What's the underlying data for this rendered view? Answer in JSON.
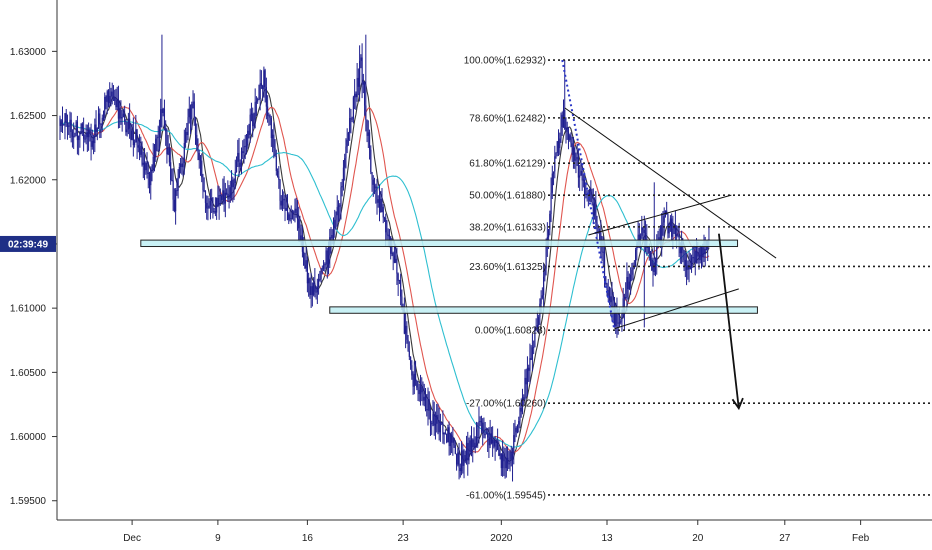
{
  "chart_data": {
    "type": "candlestick",
    "title": "",
    "ylim": [
      1.5935,
      1.634
    ],
    "y_ticks": [
      "1.63000",
      "1.62500",
      "1.62000",
      "1.61500",
      "1.61000",
      "1.60500",
      "1.60000",
      "1.59500"
    ],
    "y_tick_values": [
      1.63,
      1.625,
      1.62,
      1.615,
      1.61,
      1.605,
      1.6,
      1.595
    ],
    "x_ticks": [
      "Dec",
      "9",
      "16",
      "23",
      "2020",
      "13",
      "20",
      "27",
      "Feb"
    ],
    "x_tick_bars": [
      58,
      127,
      199,
      276,
      355,
      440,
      513,
      583,
      644
    ],
    "bar_count": 700,
    "current_time_label": "02:39:49",
    "current_price": 1.615,
    "colors": {
      "candle": "#1f1f8f",
      "ma_fast": "#3a3a3a",
      "ma_mid": "#e0564f",
      "ma_slow": "#2fbfd0",
      "zone": "#bfeff3",
      "zone_border": "#222222",
      "fib_line": "#1e1e1e",
      "fib_swing": "#2a36c8",
      "axis_label_bg": "#1f2f86"
    },
    "price_path": [
      [
        0,
        1.6248
      ],
      [
        25,
        1.623
      ],
      [
        40,
        1.6268
      ],
      [
        52,
        1.6245
      ],
      [
        62,
        1.623
      ],
      [
        72,
        1.6195
      ],
      [
        82,
        1.6255
      ],
      [
        92,
        1.618
      ],
      [
        106,
        1.626
      ],
      [
        118,
        1.6175
      ],
      [
        135,
        1.619
      ],
      [
        152,
        1.624
      ],
      [
        164,
        1.6278
      ],
      [
        178,
        1.618
      ],
      [
        190,
        1.617
      ],
      [
        202,
        1.611
      ],
      [
        212,
        1.613
      ],
      [
        222,
        1.6165
      ],
      [
        232,
        1.624
      ],
      [
        242,
        1.629
      ],
      [
        250,
        1.621
      ],
      [
        260,
        1.617
      ],
      [
        272,
        1.6125
      ],
      [
        282,
        1.605
      ],
      [
        292,
        1.603
      ],
      [
        302,
        1.601
      ],
      [
        312,
        1.6
      ],
      [
        322,
        1.598
      ],
      [
        332,
        1.5995
      ],
      [
        340,
        1.601
      ],
      [
        350,
        1.599
      ],
      [
        360,
        1.5975
      ],
      [
        368,
        1.601
      ],
      [
        378,
        1.606
      ],
      [
        388,
        1.611
      ],
      [
        396,
        1.62
      ],
      [
        404,
        1.625
      ],
      [
        412,
        1.6225
      ],
      [
        420,
        1.62
      ],
      [
        430,
        1.6175
      ],
      [
        440,
        1.612
      ],
      [
        448,
        1.6085
      ],
      [
        458,
        1.6125
      ],
      [
        468,
        1.616
      ],
      [
        478,
        1.613
      ],
      [
        486,
        1.617
      ],
      [
        496,
        1.6155
      ],
      [
        506,
        1.613
      ],
      [
        514,
        1.6145
      ],
      [
        522,
        1.615
      ]
    ],
    "highs": [
      [
        82,
        1.6313
      ],
      [
        246,
        1.6313
      ],
      [
        406,
        1.62932
      ],
      [
        478,
        1.6198
      ],
      [
        526,
        1.616
      ]
    ],
    "lows": [
      [
        322,
        1.5968
      ],
      [
        364,
        1.5965
      ],
      [
        454,
        1.60828
      ],
      [
        470,
        1.6085
      ]
    ],
    "moving_averages": [
      {
        "name": "",
        "period": 8,
        "color_key": "ma_fast"
      },
      {
        "name": "",
        "period": 20,
        "color_key": "ma_mid"
      },
      {
        "name": "",
        "period": 55,
        "color_key": "ma_slow"
      }
    ],
    "support_resistance_zones": [
      {
        "price_low": 1.6148,
        "price_high": 1.6153,
        "x_start_bar": 65,
        "x_end_bar": 545
      },
      {
        "price_low": 1.6096,
        "price_high": 1.6101,
        "x_start_bar": 217,
        "x_end_bar": 561
      }
    ],
    "fibonacci": {
      "swing_high": 1.62932,
      "swing_low": 1.60828,
      "swing_high_bar": 404,
      "swing_low_bar": 446,
      "levels": [
        {
          "label": "100.00%(1.62932)",
          "price": 1.62932
        },
        {
          "label": "78.60%(1.62482)",
          "price": 1.62482
        },
        {
          "label": "61.80%(1.62129)",
          "price": 1.62129
        },
        {
          "label": "50.00%(1.61880)",
          "price": 1.6188
        },
        {
          "label": "38.20%(1.61633)",
          "price": 1.61633
        },
        {
          "label": "23.60%(1.61325)",
          "price": 1.61325
        },
        {
          "label": "0.00%(1.60828)",
          "price": 1.60828
        },
        {
          "label": "-27.00%(1.60260)",
          "price": 1.6026
        },
        {
          "label": "-61.00%(1.59545)",
          "price": 1.59545
        }
      ]
    },
    "trendlines": [
      {
        "from": [
          406,
          1.6256
        ],
        "to": [
          576,
          1.6139
        ]
      },
      {
        "from": [
          425,
          1.6157
        ],
        "to": [
          540,
          1.6188
        ]
      },
      {
        "from": [
          446,
          1.6084
        ],
        "to": [
          546,
          1.6115
        ]
      }
    ],
    "projection_arrow": {
      "from": [
        530,
        1.6158
      ],
      "to": [
        546,
        1.6022
      ]
    }
  }
}
